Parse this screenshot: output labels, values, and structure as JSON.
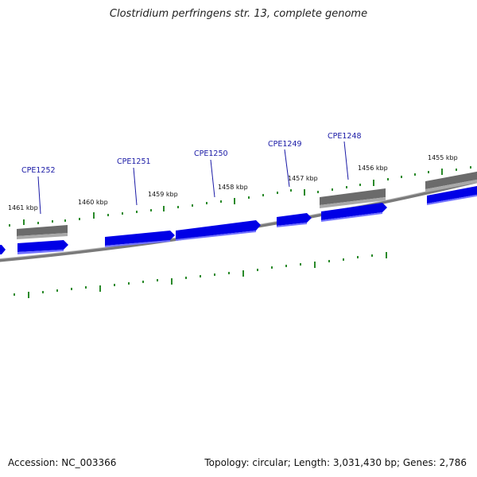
{
  "title": "Clostridium perfringens str. 13, complete genome",
  "footer": {
    "accession": "Accession: NC_003366",
    "summary": "Topology: circular; Length: 3,031,430 bp; Genes: 2,786"
  },
  "colors": {
    "background": "#ffffff",
    "backbone": "#808080",
    "gene_forward": "#0000e6",
    "gene_other": "#666666",
    "tick": "#2a8a2a",
    "label_text": "#1a1aa6"
  },
  "kbp_labels": [
    "1461 kbp",
    "1460 kbp",
    "1459 kbp",
    "1458 kbp",
    "1457 kbp",
    "1456 kbp",
    "1455 kbp"
  ],
  "gene_labels": [
    "CPE1252",
    "CPE1251",
    "CPE1250",
    "CPE1249",
    "CPE1248"
  ]
}
